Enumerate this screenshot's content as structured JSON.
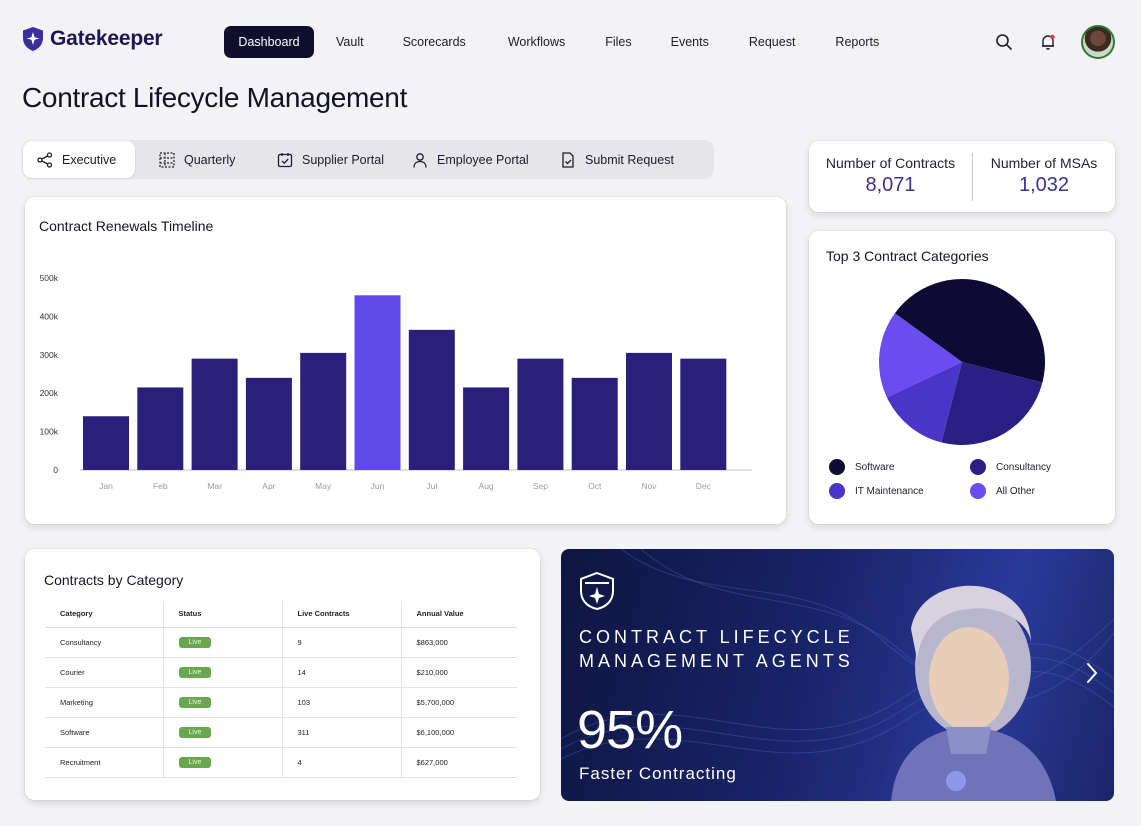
{
  "app": {
    "name": "Gatekeeper"
  },
  "nav": {
    "items": [
      "Dashboard",
      "Vault",
      "Scorecards",
      "Workflows",
      "Files",
      "Events",
      "Request",
      "Reports"
    ],
    "active": "Dashboard"
  },
  "page": {
    "title": "Contract Lifecycle Management"
  },
  "tabs": [
    "Executive",
    "Quarterly",
    "Supplier Portal",
    "Employee Portal",
    "Submit Request"
  ],
  "stats": {
    "contracts_label": "Number of Contracts",
    "contracts_value": "8,071",
    "msas_label": "Number of MSAs",
    "msas_value": "1,032"
  },
  "renewals": {
    "title": "Contract Renewals Timeline",
    "chart_data": {
      "type": "bar",
      "categories": [
        "Jan",
        "Feb",
        "Mar",
        "Apr",
        "May",
        "Jun",
        "Jul",
        "Aug",
        "Sep",
        "Oct",
        "Nov",
        "Dec"
      ],
      "values": [
        140000,
        215000,
        290000,
        240000,
        305000,
        455000,
        365000,
        215000,
        290000,
        240000,
        305000,
        290000
      ],
      "y_ticks": [
        "0",
        "100k",
        "200k",
        "300k",
        "400k",
        "500k"
      ],
      "ylim": [
        0,
        500000
      ],
      "highlight": "Jun",
      "colors": {
        "bar": "#2a1f7a",
        "highlight": "#6149e8"
      }
    }
  },
  "categories_pie": {
    "title": "Top 3 Contract Categories",
    "chart_data": {
      "type": "pie",
      "labels": [
        "Software",
        "Consultancy",
        "IT Maintenance",
        "All Other"
      ],
      "values": [
        44,
        25,
        14,
        17
      ],
      "colors": [
        "#0d0b33",
        "#2b1f86",
        "#4a35c8",
        "#6a4cf0"
      ]
    }
  },
  "category_table": {
    "title": "Contracts by Category",
    "headers": [
      "Category",
      "Status",
      "Live Contracts",
      "Annual Value"
    ],
    "rows": [
      [
        "Consultancy",
        "Live",
        "9",
        "$863,000"
      ],
      [
        "Courier",
        "Live",
        "14",
        "$210,000"
      ],
      [
        "Marketing",
        "Live",
        "103",
        "$5,700,000"
      ],
      [
        "Software",
        "Live",
        "311",
        "$6,100,000"
      ],
      [
        "Recruitment",
        "Live",
        "4",
        "$627,000"
      ]
    ]
  },
  "promo": {
    "title": "CONTRACT LIFECYCLE\nMANAGEMENT AGENTS",
    "big": "95%",
    "sub": "Faster Contracting"
  }
}
